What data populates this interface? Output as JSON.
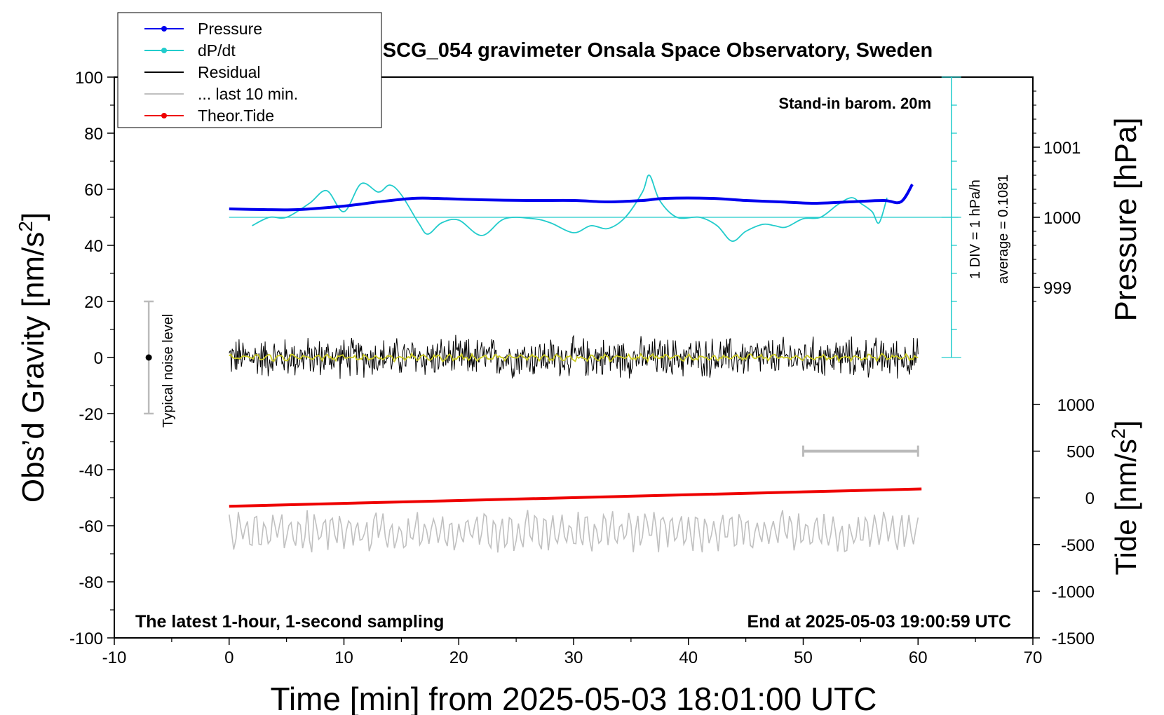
{
  "chart_data": {
    "type": "line",
    "title": "SCG_054 gravimeter Onsala Space Observatory, Sweden",
    "annotations": {
      "stand_in": "Stand-in barom. 20m",
      "bottom_left": "The latest 1-hour, 1-second sampling",
      "bottom_right": "End at 2025-05-03 19:00:59 UTC",
      "dpdt_div": "1 DIV = 1 hPa/h",
      "dpdt_avg": "average = 0.1081",
      "noise_label": "Typical noise level"
    },
    "xaxis": {
      "label": "Time [min] from 2025-05-03 18:01:00 UTC",
      "range": [
        -10,
        70
      ],
      "ticks": [
        -10,
        0,
        10,
        20,
        30,
        40,
        50,
        60,
        70
      ],
      "tick_labels": [
        "-10",
        "0",
        "10",
        "20",
        "30",
        "40",
        "50",
        "60",
        "70"
      ]
    },
    "yaxis_left": {
      "label": "Obs’d Gravity [nm/s",
      "label_sup": "2",
      "label_end": "]",
      "range": [
        -100,
        100
      ],
      "ticks": [
        -100,
        -80,
        -60,
        -40,
        -20,
        0,
        20,
        40,
        60,
        80,
        100
      ],
      "tick_labels": [
        "-100",
        "-80",
        "-60",
        "-40",
        "-20",
        "0",
        "20",
        "40",
        "60",
        "80",
        "100"
      ]
    },
    "yaxis_right_pressure": {
      "label": "Pressure [hPa]",
      "ticks": [
        999,
        1000,
        1001
      ],
      "tick_labels": [
        "999",
        "1000",
        "1001"
      ]
    },
    "yaxis_right_tide": {
      "label": "Tide [nm/s",
      "label_sup": "2",
      "label_end": "]",
      "range": [
        -1500,
        1000
      ],
      "ticks": [
        -1500,
        -1000,
        -500,
        0,
        500,
        1000
      ],
      "tick_labels": [
        "-1500",
        "-1000",
        "-500",
        "0",
        "500",
        "1000"
      ]
    },
    "legend": [
      {
        "name": "Pressure",
        "color": "#0000ee",
        "marker": true
      },
      {
        "name": "dP/dt",
        "color": "#22cccc",
        "marker": true
      },
      {
        "name": "Residual",
        "color": "#000000",
        "marker": false
      },
      {
        "name": "... last 10 min.",
        "color": "#c0c0c0",
        "marker": false
      },
      {
        "name": "Theor.Tide",
        "color": "#ee0000",
        "marker": true
      }
    ],
    "series": [
      {
        "name": "Pressure",
        "units": "hPa",
        "color": "#0000ee",
        "x": [
          0,
          3,
          6,
          10,
          13,
          16,
          18,
          22,
          26,
          30,
          33,
          36,
          38,
          42,
          45,
          48,
          51,
          54,
          57,
          58.5,
          59.5
        ],
        "y": [
          1000.12,
          1000.11,
          1000.11,
          1000.16,
          1000.22,
          1000.27,
          1000.27,
          1000.25,
          1000.24,
          1000.24,
          1000.22,
          1000.24,
          1000.27,
          1000.27,
          1000.24,
          1000.22,
          1000.2,
          1000.22,
          1000.24,
          1000.22,
          1000.47
        ]
      },
      {
        "name": "dP/dt",
        "units": "nm/s2",
        "color": "#22cccc",
        "x": [
          2,
          3.5,
          5,
          7,
          8.5,
          10,
          11.5,
          13,
          14,
          15,
          16.5,
          17.3,
          18.5,
          20,
          22,
          24,
          26.5,
          28,
          30,
          31.5,
          33,
          34.5,
          36,
          36.6,
          37.5,
          39,
          41,
          42.5,
          43.8,
          45,
          46.5,
          47.5,
          48.5,
          50,
          51.5,
          53,
          54.2,
          55,
          56,
          56.6,
          57.3
        ],
        "y": [
          47,
          50,
          50,
          55,
          59.5,
          52,
          62,
          59,
          61.5,
          58,
          48,
          44,
          48,
          49,
          43.5,
          49.5,
          49.5,
          48,
          44.5,
          47,
          46,
          50,
          59,
          65,
          56,
          50,
          50,
          47,
          41.5,
          45,
          47.5,
          47,
          46.5,
          49.5,
          50,
          54.5,
          57,
          55,
          52,
          48,
          57
        ]
      },
      {
        "name": "Residual",
        "units": "nm/s2",
        "color": "#000000",
        "x_range": [
          0,
          60
        ],
        "center": 0,
        "amplitude": 7
      },
      {
        "name": "Residual smoothed",
        "units": "nm/s2",
        "color": "#cccc22",
        "x_range": [
          0,
          60
        ],
        "center": 0,
        "amplitude": 1.5
      },
      {
        "name": "... last 10 min.",
        "units": "nm/s2",
        "color": "#c0c0c0",
        "x_range": [
          0,
          60
        ],
        "center": -62,
        "amplitude": 7
      },
      {
        "name": "Theor.Tide",
        "units": "nm/s2 (tide axis)",
        "color": "#ee0000",
        "x": [
          0,
          60.3
        ],
        "y": [
          -90,
          95
        ]
      }
    ],
    "dpdt_reference": {
      "zero_level": 50,
      "div_step": 10,
      "baseline_x_range": [
        0,
        63.5
      ]
    },
    "noise_bar": {
      "x": -7,
      "center": 0,
      "half_range": 20
    },
    "scale_bar": {
      "x_range": [
        50,
        60
      ],
      "tide_value": 500
    }
  }
}
